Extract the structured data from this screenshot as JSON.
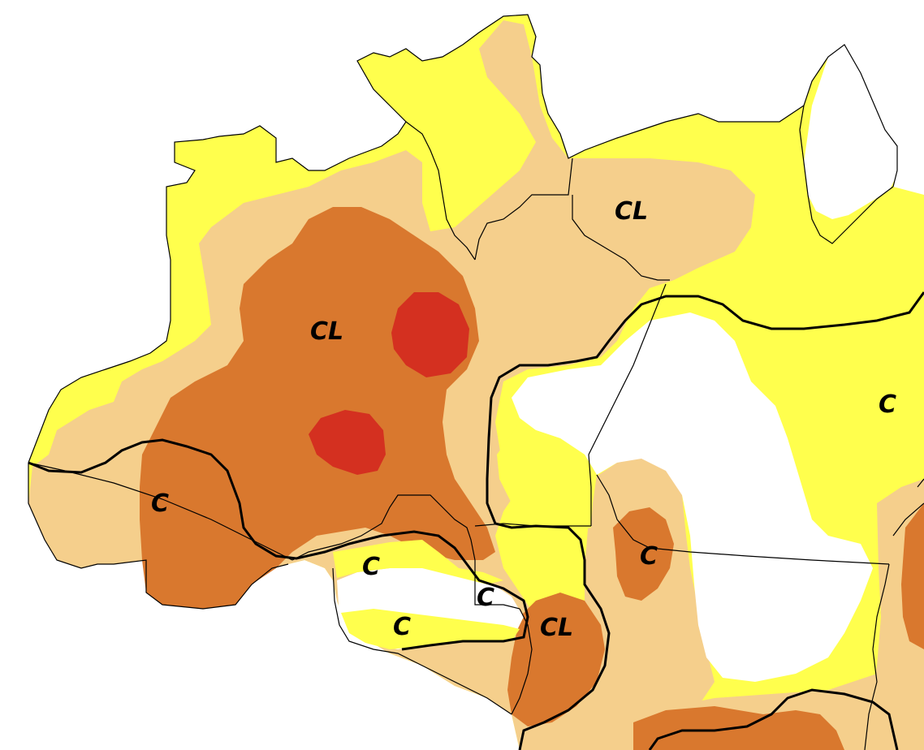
{
  "map": {
    "legend_colors": {
      "none": "#ffffff",
      "light": "#ffff4d",
      "moderate": "#f5cf8c",
      "severe": "#d9782e",
      "extreme": "#d43020"
    },
    "border_color": "#000000",
    "labels": [
      {
        "id": "cl-north",
        "text": "CL"
      },
      {
        "id": "cl-central",
        "text": "CL"
      },
      {
        "id": "c-east",
        "text": "C"
      },
      {
        "id": "c-west",
        "text": "C"
      },
      {
        "id": "c-south-1",
        "text": "C"
      },
      {
        "id": "c-south-2",
        "text": "C"
      },
      {
        "id": "c-south-3",
        "text": "C"
      },
      {
        "id": "cl-south",
        "text": "CL"
      },
      {
        "id": "c-southeast",
        "text": "C"
      }
    ]
  }
}
